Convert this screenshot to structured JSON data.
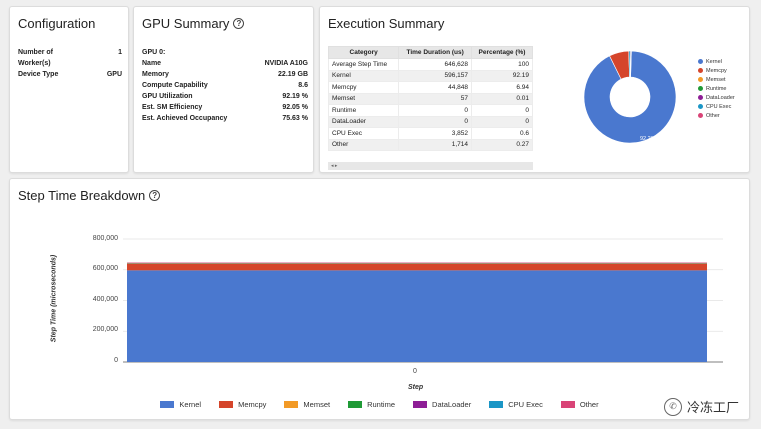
{
  "configuration": {
    "title": "Configuration",
    "rows": [
      {
        "key": "Number of",
        "value": "1"
      },
      {
        "key": "Worker(s)",
        "value": ""
      },
      {
        "key": "Device Type",
        "value": "GPU"
      }
    ]
  },
  "gpu_summary": {
    "title": "GPU Summary",
    "rows": [
      {
        "key": "GPU 0:",
        "value": ""
      },
      {
        "key": "Name",
        "value": "NVIDIA A10G"
      },
      {
        "key": "Memory",
        "value": "22.19 GB"
      },
      {
        "key": "Compute Capability",
        "value": "8.6"
      },
      {
        "key": "GPU Utilization",
        "value": "92.19 %"
      },
      {
        "key": "Est. SM Efficiency",
        "value": "92.05 %"
      },
      {
        "key": "Est. Achieved Occupancy",
        "value": "75.63 %"
      }
    ]
  },
  "execution_summary": {
    "title": "Execution Summary",
    "columns": [
      "Category",
      "Time Duration (us)",
      "Percentage (%)"
    ],
    "rows": [
      [
        "Average Step Time",
        "646,628",
        "100"
      ],
      [
        "Kernel",
        "596,157",
        "92.19"
      ],
      [
        "Memcpy",
        "44,848",
        "6.94"
      ],
      [
        "Memset",
        "57",
        "0.01"
      ],
      [
        "Runtime",
        "0",
        "0"
      ],
      [
        "DataLoader",
        "0",
        "0"
      ],
      [
        "CPU Exec",
        "3,852",
        "0.6"
      ],
      [
        "Other",
        "1,714",
        "0.27"
      ]
    ],
    "pager": "◂ ▸",
    "pie_label": "92.2%",
    "legend": [
      "Kernel",
      "Memcpy",
      "Memset",
      "Runtime",
      "DataLoader",
      "CPU Exec",
      "Other"
    ]
  },
  "step_time": {
    "title": "Step Time Breakdown",
    "ylabel": "Step Time (microseconds)",
    "xlabel": "Step",
    "x_tick": "0",
    "y_ticks": [
      "800,000",
      "600,000",
      "400,000",
      "200,000",
      "0"
    ],
    "legend": [
      "Kernel",
      "Memcpy",
      "Memset",
      "Runtime",
      "DataLoader",
      "CPU Exec",
      "Other"
    ]
  },
  "colors": {
    "Kernel": "#4a78cf",
    "Memcpy": "#d5452b",
    "Memset": "#f29a26",
    "Runtime": "#1f9a36",
    "DataLoader": "#8e1e96",
    "CPU Exec": "#1b96c6",
    "Other": "#d94477"
  },
  "chart_data": [
    {
      "type": "pie",
      "categories": [
        "Kernel",
        "Memcpy",
        "Memset",
        "Runtime",
        "DataLoader",
        "CPU Exec",
        "Other"
      ],
      "values": [
        92.19,
        6.94,
        0.01,
        0,
        0,
        0.6,
        0.27
      ],
      "legend_position": "right"
    },
    {
      "type": "bar",
      "title": "Step Time Breakdown",
      "xlabel": "Step",
      "ylabel": "Step Time (microseconds)",
      "categories": [
        "0"
      ],
      "series": [
        {
          "name": "Kernel",
          "values": [
            596157
          ]
        },
        {
          "name": "Memcpy",
          "values": [
            44848
          ]
        },
        {
          "name": "Memset",
          "values": [
            57
          ]
        },
        {
          "name": "Runtime",
          "values": [
            0
          ]
        },
        {
          "name": "DataLoader",
          "values": [
            0
          ]
        },
        {
          "name": "CPU Exec",
          "values": [
            3852
          ]
        },
        {
          "name": "Other",
          "values": [
            1714
          ]
        }
      ],
      "ylim": [
        0,
        800000
      ],
      "stacked": true,
      "legend_position": "bottom"
    }
  ],
  "watermark": "冷冻工厂"
}
